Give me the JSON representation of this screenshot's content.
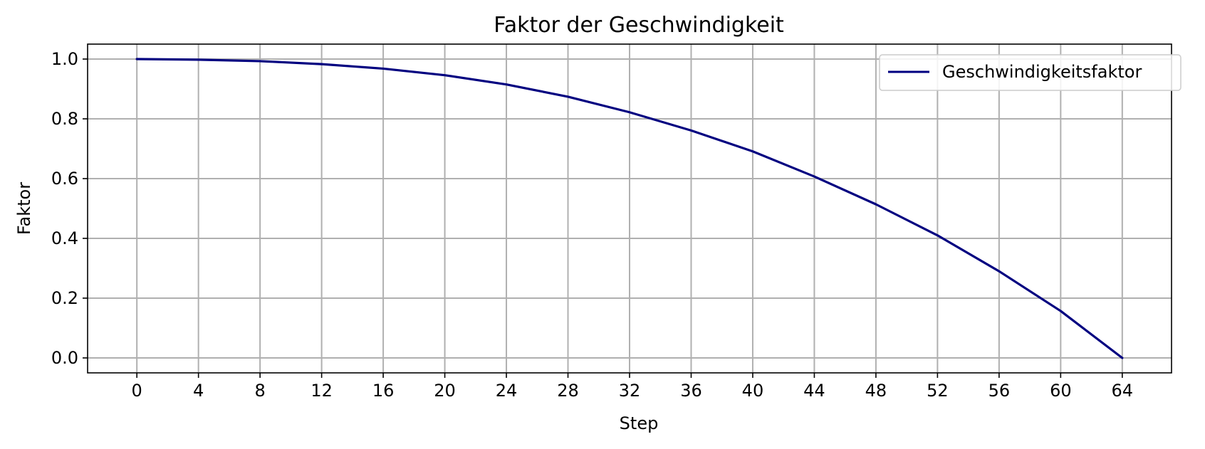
{
  "chart_data": {
    "type": "line",
    "title": "Faktor der Geschwindigkeit",
    "xlabel": "Step",
    "ylabel": "Faktor",
    "xlim": [
      -3.2,
      67.2
    ],
    "ylim": [
      -0.05,
      1.05
    ],
    "x_ticks": [
      0,
      4,
      8,
      12,
      16,
      20,
      24,
      28,
      32,
      36,
      40,
      44,
      48,
      52,
      56,
      60,
      64
    ],
    "y_ticks": [
      0.0,
      0.2,
      0.4,
      0.6,
      0.8,
      1.0
    ],
    "y_tick_labels": [
      "0.0",
      "0.2",
      "0.4",
      "0.6",
      "0.8",
      "1.0"
    ],
    "grid": true,
    "legend_position": "top-right",
    "series": [
      {
        "name": "Geschwindigkeitsfaktor",
        "color": "#000080",
        "x": [
          0,
          4,
          8,
          12,
          16,
          20,
          24,
          28,
          32,
          36,
          40,
          44,
          48,
          52,
          56,
          60,
          64
        ],
        "y": [
          1.0,
          0.998,
          0.993,
          0.983,
          0.968,
          0.946,
          0.915,
          0.874,
          0.822,
          0.761,
          0.691,
          0.607,
          0.514,
          0.41,
          0.29,
          0.157,
          0.0
        ]
      }
    ]
  }
}
